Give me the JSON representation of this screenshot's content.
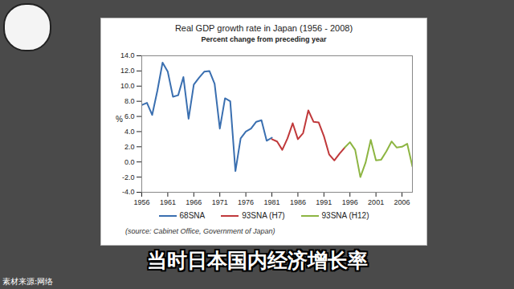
{
  "chart_data": {
    "type": "line",
    "title": "Real GDP growth rate in Japan (1956 - 2008)",
    "subtitle": "Percent change from preceding year",
    "y_label": "%",
    "source": "(source: Cabinet Office, Government of Japan)",
    "caption": "当时日本国内经济增长率",
    "credit": "素材来源:网络",
    "x": [
      1956,
      1957,
      1958,
      1959,
      1960,
      1961,
      1962,
      1963,
      1964,
      1965,
      1966,
      1967,
      1968,
      1969,
      1970,
      1971,
      1972,
      1973,
      1974,
      1975,
      1976,
      1977,
      1978,
      1979,
      1980,
      1981,
      1982,
      1983,
      1984,
      1985,
      1986,
      1987,
      1988,
      1989,
      1990,
      1991,
      1992,
      1993,
      1994,
      1995,
      1996,
      1997,
      1998,
      1999,
      2000,
      2001,
      2002,
      2003,
      2004,
      2005,
      2006,
      2007,
      2008
    ],
    "series": [
      {
        "name": "68SNA",
        "color": "#3a6fb0",
        "values": [
          7.5,
          7.8,
          6.2,
          9.4,
          13.1,
          11.9,
          8.6,
          8.8,
          11.2,
          5.7,
          10.2,
          11.1,
          11.9,
          12.0,
          10.3,
          4.4,
          8.4,
          8.0,
          -1.2,
          3.1,
          4.0,
          4.4,
          5.3,
          5.5,
          2.8,
          3.2,
          null,
          null,
          null,
          null,
          null,
          null,
          null,
          null,
          null,
          null,
          null,
          null,
          null,
          null,
          null,
          null,
          null,
          null,
          null,
          null,
          null,
          null,
          null,
          null,
          null,
          null,
          null
        ]
      },
      {
        "name": "93SNA (H7)",
        "color": "#c0393b",
        "values": [
          null,
          null,
          null,
          null,
          null,
          null,
          null,
          null,
          null,
          null,
          null,
          null,
          null,
          null,
          null,
          null,
          null,
          null,
          null,
          null,
          null,
          null,
          null,
          null,
          null,
          3.0,
          2.7,
          1.6,
          3.1,
          5.1,
          3.0,
          3.8,
          6.8,
          5.3,
          5.2,
          3.4,
          1.0,
          0.2,
          1.1,
          1.9,
          null,
          null,
          null,
          null,
          null,
          null,
          null,
          null,
          null,
          null,
          null,
          null,
          null
        ]
      },
      {
        "name": "93SNA (H12)",
        "color": "#8db542",
        "values": [
          null,
          null,
          null,
          null,
          null,
          null,
          null,
          null,
          null,
          null,
          null,
          null,
          null,
          null,
          null,
          null,
          null,
          null,
          null,
          null,
          null,
          null,
          null,
          null,
          null,
          null,
          null,
          null,
          null,
          null,
          null,
          null,
          null,
          null,
          null,
          null,
          null,
          null,
          null,
          1.9,
          2.6,
          1.6,
          -2.0,
          -0.1,
          2.9,
          0.2,
          0.3,
          1.4,
          2.7,
          1.9,
          2.0,
          2.4,
          -0.6
        ]
      }
    ],
    "xlim": [
      1956,
      2008
    ],
    "xticks": [
      1956,
      1961,
      1966,
      1971,
      1976,
      1981,
      1986,
      1991,
      1996,
      2001,
      2006
    ],
    "ylim": [
      -4,
      14
    ],
    "yticks": [
      {
        "value": -4,
        "label": "-4.0"
      },
      {
        "value": -2,
        "label": "-2.0"
      },
      {
        "value": 0,
        "label": "0.0"
      },
      {
        "value": 2,
        "label": "2.0"
      },
      {
        "value": 4,
        "label": "4.0"
      },
      {
        "value": 6,
        "label": "6.0"
      },
      {
        "value": 8,
        "label": "8.0"
      },
      {
        "value": 10,
        "label": "10.0"
      },
      {
        "value": 12,
        "label": "12.0"
      },
      {
        "value": 14,
        "label": "14.0"
      }
    ],
    "grid": false,
    "legend": "bottom"
  }
}
